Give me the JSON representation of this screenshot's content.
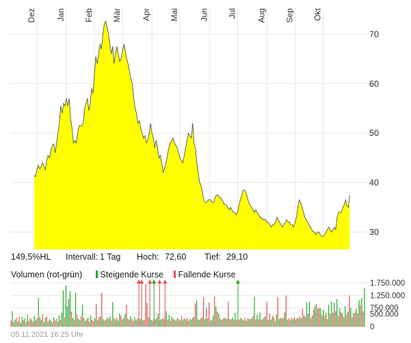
{
  "stats": {
    "hl_ratio": "149,5%HL",
    "interval_label": "Intervall:",
    "interval_value": "1 Tag",
    "high_label": "Hoch:",
    "high_value": "72,60",
    "low_label": "Tief:",
    "low_value": "29,10"
  },
  "volume_legend": {
    "title": "Volumen (rot-grün)",
    "rising_label": "Steigende Kurse",
    "falling_label": "Fallende Kurse",
    "rising_color": "#22aa22",
    "falling_color": "#e05050"
  },
  "timestamp": "05.11.2021 16:25 Uhr",
  "colors": {
    "price_fill": "#ffff00",
    "price_line": "#555555",
    "grid": "#e6e6e6",
    "rising": "#22aa22",
    "falling": "#e05050"
  },
  "chart_data": [
    {
      "type": "area",
      "ylim": [
        26.5,
        75.5
      ],
      "y_ticks": [
        30,
        40,
        50,
        60,
        70
      ],
      "y_tick_labels": [
        "30",
        "40",
        "50",
        "60",
        "70"
      ],
      "x_tick_labels": [
        "Dez",
        "Jan",
        "Feb",
        "Mär",
        "Apr",
        "Mai",
        "Jun",
        "Jul",
        "Aug",
        "Sep",
        "Okt"
      ],
      "x_tick_positions": [
        2,
        23,
        43,
        63,
        84,
        104,
        125,
        145,
        166,
        186,
        206
      ],
      "x_range": [
        -17,
        236
      ],
      "grid": true,
      "series": [
        {
          "values": [
            41.5,
            41.2,
            42.5,
            43.5,
            42.8,
            43.2,
            44,
            43.5,
            42.5,
            44.5,
            45.5,
            45,
            46.5,
            47.5,
            47.8,
            46,
            48,
            50,
            52,
            55.5,
            54,
            56,
            55.5,
            57,
            55.5,
            57,
            53,
            51,
            48,
            48.5,
            48,
            50,
            51.5,
            51.5,
            51.5,
            52,
            55,
            56,
            57,
            54.5,
            56,
            59,
            58,
            62,
            65.5,
            64,
            66,
            68,
            67,
            70,
            72,
            72.6,
            71.5,
            70,
            68,
            66,
            67.5,
            64,
            66,
            67.5,
            66,
            64.5,
            65,
            66.5,
            68,
            66.5,
            65,
            64,
            62.5,
            61,
            60,
            57,
            55,
            54,
            52,
            52.5,
            51,
            50,
            49,
            49.5,
            48,
            48.5,
            50,
            52,
            50,
            49,
            47,
            48.5,
            47,
            45,
            45.5,
            44,
            42,
            43,
            44,
            45.5,
            47,
            48,
            48.5,
            49,
            48,
            47.5,
            47,
            46,
            45,
            44.5,
            44,
            45.5,
            47,
            48.5,
            50,
            49.5,
            49,
            52,
            48,
            47,
            44,
            42,
            40,
            39.5,
            38,
            36.5,
            36,
            36,
            36.5,
            36.5,
            36.5,
            36,
            36,
            37,
            37.5,
            37.5,
            37,
            37,
            36.5,
            36,
            35.5,
            35.5,
            35,
            34.5,
            35,
            34.5,
            34,
            34,
            33.5,
            34,
            35.5,
            36.5,
            37.5,
            38.5,
            38.5,
            38,
            37,
            36,
            35.5,
            35,
            34.5,
            34,
            34.5,
            34,
            33.5,
            33,
            33,
            32.5,
            32.5,
            32.5,
            32,
            32,
            31.5,
            31,
            31.5,
            31.5,
            32,
            33,
            32.5,
            32,
            31.5,
            31,
            31.5,
            32,
            32.5,
            32,
            32,
            31.5,
            31.5,
            31,
            32,
            33,
            35,
            36.5,
            36,
            35,
            34,
            33,
            32.5,
            32,
            31.5,
            31,
            30.5,
            30,
            30,
            29.5,
            30,
            30,
            29.5,
            29.2,
            29.1,
            29.5,
            30,
            30.5,
            31,
            30.5,
            30,
            30.5,
            31,
            30.5,
            33,
            34,
            34,
            34,
            35,
            35.5,
            36.5,
            35.5,
            35,
            37.5
          ]
        }
      ]
    },
    {
      "type": "bar",
      "title": "Volumen (rot-grün)",
      "ylim": [
        0,
        1750000
      ],
      "y_ticks": [
        0,
        500000,
        750000,
        1250000,
        1750000
      ],
      "y_tick_labels": [
        "0",
        "500.000",
        "750.000",
        "1.250.000",
        "1.750.000"
      ],
      "series": [
        {
          "name": "Volumen",
          "values": [
            240000,
            620000,
            180000,
            280000,
            350000,
            210000,
            410000,
            150000,
            390000,
            260000,
            320000,
            180000,
            470000,
            230000,
            360000,
            290000,
            200000,
            430000,
            250000,
            340000,
            1150000,
            390000,
            270000,
            480000,
            190000,
            350000,
            410000,
            220000,
            300000,
            260000,
            170000,
            380000,
            250000,
            310000,
            200000,
            440000,
            270000,
            560000,
            1450000,
            380000,
            1650000,
            820000,
            1100000,
            1420000,
            600000,
            350000,
            280000,
            1350000,
            470000,
            320000,
            260000,
            410000,
            880000,
            340000,
            230000,
            290000,
            360000,
            190000,
            450000,
            270000,
            220000,
            330000,
            900000,
            250000,
            380000,
            420000,
            1350000,
            310000,
            240000,
            280000,
            370000,
            300000,
            410000,
            250000,
            980000,
            330000,
            270000,
            360000,
            240000,
            520000,
            430000,
            290000,
            350000,
            510000,
            880000,
            320000,
            270000,
            410000,
            300000,
            230000,
            380000,
            260000,
            340000,
            290000,
            310000,
            370000,
            250000,
            280000,
            1700000,
            950000,
            380000,
            330000,
            270000,
            240000,
            310000,
            290000,
            360000,
            520000,
            250000,
            280000,
            340000,
            300000,
            410000,
            620000,
            270000,
            460000,
            230000,
            390000,
            310000,
            280000,
            240000,
            350000,
            300000,
            250000,
            420000,
            270000,
            330000,
            290000,
            360000,
            240000,
            310000,
            280000,
            350000,
            400000,
            920000,
            1040000,
            290000,
            270000,
            330000,
            380000,
            1180000,
            300000,
            760000,
            330000,
            960000,
            240000,
            280000,
            450000,
            1200000,
            800000,
            600000,
            520000,
            330000,
            270000,
            300000,
            370000,
            310000,
            330000,
            1000000,
            300000,
            290000,
            370000,
            290000,
            550000,
            250000,
            320000,
            280000,
            350000,
            300000,
            260000,
            370000,
            240000,
            330000,
            320000,
            290000,
            350000,
            430000,
            1200000,
            290000,
            480000,
            310000,
            560000,
            270000,
            300000,
            380000,
            420000,
            1000000,
            260000,
            520000,
            280000,
            430000,
            390000,
            230000,
            480000,
            1180000,
            300000,
            340000,
            320000,
            360000,
            570000,
            1250000,
            280000,
            330000,
            250000,
            360000,
            300000,
            380000,
            290000,
            350000,
            330000,
            400000,
            340000,
            720000,
            450000,
            390000,
            960000,
            520000,
            1000000,
            340000,
            440000,
            700000,
            830000,
            900000,
            720000,
            760000,
            730000,
            470000,
            680000,
            420000,
            540000,
            310000,
            880000,
            520000,
            1000000,
            560000,
            960000,
            620000,
            1100000,
            430000,
            740000,
            580000,
            520000,
            390000,
            820000,
            460000,
            600000,
            1250000,
            740000,
            380000,
            540000,
            560000,
            710000,
            520000,
            1050000,
            880000,
            1150000,
            620000,
            1550000
          ],
          "direction": [
            "f",
            "r",
            "f",
            "r",
            "f",
            "r",
            "f",
            "r",
            "r",
            "f",
            "r",
            "f",
            "r",
            "f",
            "f",
            "r",
            "f",
            "r",
            "r",
            "f",
            "r",
            "f",
            "r",
            "f",
            "r",
            "r",
            "f",
            "r",
            "f",
            "r",
            "f",
            "r",
            "f",
            "f",
            "r",
            "r",
            "f",
            "r",
            "r",
            "f",
            "r",
            "r",
            "r",
            "r",
            "f",
            "r",
            "f",
            "r",
            "f",
            "r",
            "r",
            "f",
            "r",
            "f",
            "r",
            "f",
            "r",
            "f",
            "r",
            "f",
            "f",
            "r",
            "f",
            "r",
            "f",
            "r",
            "f",
            "r",
            "f",
            "r",
            "f",
            "r",
            "r",
            "f",
            "r",
            "f",
            "r",
            "f",
            "r",
            "r",
            "f",
            "r",
            "f",
            "r",
            "f",
            "r",
            "f",
            "r",
            "f",
            "f",
            "r",
            "f",
            "r",
            "f",
            "r",
            "f",
            "r",
            "f",
            "f",
            "f",
            "r",
            "f",
            "r",
            "f",
            "r",
            "f",
            "r",
            "r",
            "f",
            "r",
            "f",
            "r",
            "f",
            "r",
            "f",
            "r",
            "f",
            "r",
            "f",
            "r",
            "f",
            "r",
            "f",
            "r",
            "f",
            "r",
            "f",
            "r",
            "f",
            "r",
            "f",
            "r",
            "f",
            "r",
            "f",
            "r",
            "f",
            "r",
            "f",
            "r",
            "f",
            "r",
            "f",
            "r",
            "f",
            "r",
            "f",
            "r",
            "f",
            "r",
            "f",
            "r",
            "f",
            "r",
            "f",
            "r",
            "f",
            "r",
            "f",
            "r",
            "f",
            "r",
            "f",
            "r",
            "f",
            "r",
            "f",
            "r",
            "f",
            "r",
            "f",
            "r",
            "f",
            "r",
            "f",
            "r",
            "f",
            "r",
            "f",
            "r",
            "f",
            "r",
            "f",
            "r",
            "f",
            "r",
            "f",
            "r",
            "f",
            "r",
            "f",
            "r",
            "f",
            "r",
            "f",
            "r",
            "f",
            "r",
            "f",
            "r",
            "f",
            "r",
            "f",
            "r",
            "f",
            "r",
            "f",
            "r",
            "f",
            "r",
            "f",
            "r",
            "f",
            "r",
            "f",
            "r",
            "f",
            "r",
            "f",
            "r",
            "f",
            "r",
            "f",
            "r",
            "f",
            "r",
            "f",
            "r",
            "f",
            "r",
            "f",
            "r",
            "f",
            "r",
            "f",
            "r",
            "f",
            "r",
            "f",
            "r",
            "f",
            "r",
            "f",
            "r",
            "f",
            "r",
            "f",
            "r",
            "f",
            "r",
            "f",
            "r",
            "f",
            "r",
            "f",
            "r",
            "f",
            "r",
            "f",
            "r"
          ],
          "capped_indices": [
            93,
            95,
            101,
            104,
            108,
            112,
            165
          ]
        }
      ]
    }
  ]
}
